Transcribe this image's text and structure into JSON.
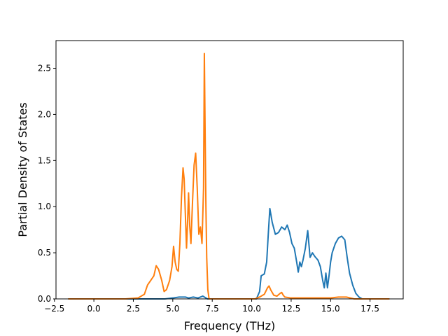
{
  "chart_data": {
    "type": "line",
    "title": "",
    "xlabel": "Frequency (THz)",
    "ylabel": "Partial Density of States",
    "xlim": [
      -2.4,
      19.6
    ],
    "ylim": [
      0,
      2.8
    ],
    "xticks": [
      {
        "value": -2.5,
        "label": "−2.5"
      },
      {
        "value": 0.0,
        "label": "0.0"
      },
      {
        "value": 2.5,
        "label": "2.5"
      },
      {
        "value": 5.0,
        "label": "5.0"
      },
      {
        "value": 7.5,
        "label": "7.5"
      },
      {
        "value": 10.0,
        "label": "10.0"
      },
      {
        "value": 12.5,
        "label": "12.5"
      },
      {
        "value": 15.0,
        "label": "15.0"
      },
      {
        "value": 17.5,
        "label": "17.5"
      }
    ],
    "yticks": [
      {
        "value": 0.0,
        "label": "0.0"
      },
      {
        "value": 0.5,
        "label": "0.5"
      },
      {
        "value": 1.0,
        "label": "1.0"
      },
      {
        "value": 1.5,
        "label": "1.5"
      },
      {
        "value": 2.0,
        "label": "2.0"
      },
      {
        "value": 2.5,
        "label": "2.5"
      }
    ],
    "grid": false,
    "legend": "none",
    "series": [
      {
        "color": "#1f77b4",
        "x": [
          -1.6,
          3.0,
          4.5,
          5.0,
          5.4,
          5.8,
          6.0,
          6.3,
          6.6,
          6.9,
          7.0,
          7.2,
          7.4,
          10.3,
          10.5,
          10.6,
          10.8,
          10.95,
          11.05,
          11.15,
          11.3,
          11.5,
          11.7,
          11.9,
          12.1,
          12.25,
          12.4,
          12.55,
          12.7,
          12.85,
          12.95,
          13.05,
          13.15,
          13.25,
          13.4,
          13.55,
          13.7,
          13.85,
          14.0,
          14.2,
          14.35,
          14.5,
          14.6,
          14.7,
          14.8,
          14.9,
          15.0,
          15.1,
          15.3,
          15.5,
          15.7,
          15.9,
          16.05,
          16.2,
          16.4,
          16.6,
          16.8,
          17.0,
          17.2,
          18.7
        ],
        "y": [
          0.0,
          0.0,
          0.0,
          0.01,
          0.02,
          0.02,
          0.01,
          0.02,
          0.01,
          0.03,
          0.02,
          0.0,
          0.0,
          0.0,
          0.08,
          0.25,
          0.27,
          0.4,
          0.7,
          0.98,
          0.83,
          0.7,
          0.72,
          0.78,
          0.75,
          0.8,
          0.72,
          0.6,
          0.55,
          0.4,
          0.29,
          0.4,
          0.35,
          0.42,
          0.55,
          0.74,
          0.45,
          0.5,
          0.46,
          0.42,
          0.35,
          0.2,
          0.12,
          0.28,
          0.12,
          0.25,
          0.4,
          0.5,
          0.6,
          0.66,
          0.68,
          0.64,
          0.45,
          0.28,
          0.15,
          0.06,
          0.02,
          0.0,
          0.0,
          0.0
        ]
      },
      {
        "color": "#ff7f0e",
        "x": [
          -1.6,
          2.0,
          2.8,
          3.2,
          3.4,
          3.6,
          3.8,
          3.95,
          4.1,
          4.3,
          4.45,
          4.6,
          4.8,
          4.95,
          5.05,
          5.15,
          5.25,
          5.35,
          5.45,
          5.55,
          5.65,
          5.72,
          5.8,
          5.87,
          5.93,
          6.0,
          6.07,
          6.15,
          6.25,
          6.35,
          6.45,
          6.55,
          6.65,
          6.75,
          6.85,
          6.95,
          7.0,
          7.05,
          7.1,
          7.15,
          7.22,
          7.3,
          7.4,
          10.2,
          10.5,
          10.8,
          11.0,
          11.1,
          11.2,
          11.4,
          11.6,
          11.8,
          11.9,
          12.0,
          12.1,
          12.5,
          13.0,
          14.0,
          15.0,
          15.5,
          16.0,
          16.5,
          18.7
        ],
        "y": [
          0.0,
          0.0,
          0.01,
          0.05,
          0.15,
          0.2,
          0.25,
          0.36,
          0.32,
          0.2,
          0.08,
          0.1,
          0.2,
          0.35,
          0.57,
          0.4,
          0.32,
          0.3,
          0.6,
          1.1,
          1.42,
          1.3,
          0.9,
          0.55,
          0.8,
          1.15,
          0.8,
          0.6,
          1.05,
          1.45,
          1.58,
          1.2,
          0.7,
          0.78,
          0.6,
          1.2,
          2.66,
          1.8,
          1.0,
          0.45,
          0.1,
          0.0,
          0.0,
          0.0,
          0.02,
          0.05,
          0.12,
          0.14,
          0.1,
          0.04,
          0.03,
          0.06,
          0.07,
          0.04,
          0.02,
          0.01,
          0.01,
          0.01,
          0.01,
          0.02,
          0.02,
          0.0,
          0.0
        ]
      }
    ]
  }
}
